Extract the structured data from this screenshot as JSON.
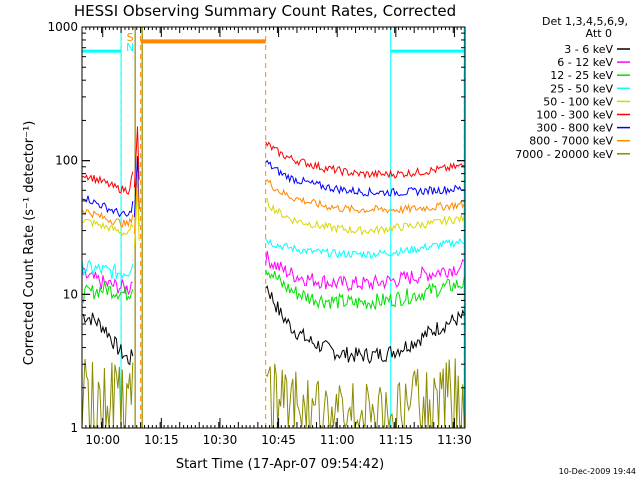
{
  "chart_data": {
    "type": "line",
    "title": "HESSI Observing Summary Count Rates, Corrected",
    "xlabel": "Start Time (17-Apr-07 09:54:42)",
    "ylabel": "Corrected Count Rate (s⁻¹ detector⁻¹)",
    "x_unit": "minutes after 09:54:42",
    "xlim": [
      0,
      98
    ],
    "ylim": [
      1,
      1000
    ],
    "y_scale": "log",
    "x_ticks": [
      {
        "x": 5.3,
        "label": "10:00"
      },
      {
        "x": 20.3,
        "label": "10:15"
      },
      {
        "x": 35.3,
        "label": "10:30"
      },
      {
        "x": 50.3,
        "label": "10:45"
      },
      {
        "x": 65.3,
        "label": "11:00"
      },
      {
        "x": 80.3,
        "label": "11:15"
      },
      {
        "x": 95.3,
        "label": "11:30"
      }
    ],
    "y_ticks": [
      {
        "y": 1,
        "label": "1"
      },
      {
        "y": 10,
        "label": "10"
      },
      {
        "y": 100,
        "label": "100"
      },
      {
        "y": 1000,
        "label": "1000"
      }
    ],
    "legend": {
      "header": [
        "Det 1,3,4,5,6,9,",
        "Att 0"
      ],
      "position": "right"
    },
    "series": [
      {
        "name": "3 - 6 keV",
        "color": "#000000",
        "segments": [
          {
            "x": [
              0,
              3,
              6,
              9,
              12,
              13
            ],
            "y": [
              7,
              6.5,
              5.5,
              4,
              3.2,
              3.5
            ]
          },
          {
            "x": [
              47,
              49,
              51,
              54,
              58,
              62,
              66,
              70,
              74,
              78,
              82,
              86,
              90,
              94,
              97.8
            ],
            "y": [
              12,
              9,
              7,
              5.5,
              4.5,
              4,
              3.6,
              3.5,
              3.5,
              3.6,
              4,
              4.6,
              5.4,
              6.2,
              6.8
            ]
          }
        ]
      },
      {
        "name": "6 - 12 keV",
        "color": "#ff00ff",
        "segments": [
          {
            "x": [
              0,
              3,
              6,
              9,
              12,
              13
            ],
            "y": [
              14,
              13,
              12,
              11.5,
              11,
              13
            ]
          },
          {
            "x": [
              47,
              49,
              51,
              54,
              58,
              62,
              66,
              70,
              74,
              78,
              82,
              86,
              90,
              94,
              97.8
            ],
            "y": [
              19,
              17,
              15.5,
              14,
              13,
              12.5,
              12,
              12,
              12,
              12.5,
              13,
              13.8,
              14.5,
              15.5,
              16
            ]
          }
        ]
      },
      {
        "name": "12 - 25 keV",
        "color": "#00e000",
        "segments": [
          {
            "x": [
              0,
              3,
              6,
              9,
              12,
              13
            ],
            "y": [
              10,
              10.5,
              11,
              10.5,
              10,
              12
            ]
          },
          {
            "x": [
              47,
              49,
              51,
              54,
              58,
              62,
              66,
              70,
              74,
              78,
              82,
              86,
              90,
              94,
              97.8
            ],
            "y": [
              16,
              14,
              12,
              10.5,
              9.5,
              9,
              8.8,
              8.6,
              8.8,
              9,
              9.5,
              10,
              10.8,
              11.5,
              12
            ]
          }
        ]
      },
      {
        "name": "25 - 50 keV",
        "color": "#00ffff",
        "segments": [
          {
            "x": [
              0,
              3,
              6,
              9,
              12,
              13
            ],
            "y": [
              16,
              15.5,
              15,
              14.5,
              15,
              18
            ]
          },
          {
            "x": [
              47,
              49,
              51,
              54,
              58,
              62,
              66,
              70,
              74,
              78,
              82,
              86,
              90,
              94,
              97.8
            ],
            "y": [
              26,
              24,
              23,
              22,
              21,
              20.5,
              20,
              20,
              20,
              20.5,
              21,
              22,
              23,
              24,
              25
            ]
          }
        ]
      },
      {
        "name": "50 - 100 keV",
        "color": "#d8d800",
        "segments": [
          {
            "x": [
              0,
              3,
              6,
              9,
              12,
              13
            ],
            "y": [
              36,
              34,
              32,
              30,
              28,
              34
            ]
          },
          {
            "x": [
              47,
              49,
              51,
              54,
              58,
              62,
              66,
              70,
              74,
              78,
              82,
              86,
              90,
              94,
              97.8
            ],
            "y": [
              50,
              44,
              40,
              36,
              34,
              32,
              31,
              30,
              30,
              31,
              32,
              33,
              34,
              36,
              37
            ]
          }
        ]
      },
      {
        "name": "100 - 300 keV",
        "color": "#ff0000",
        "segments": [
          {
            "x": [
              0,
              3,
              6,
              9,
              12,
              13
            ],
            "y": [
              80,
              74,
              68,
              62,
              60,
              80
            ]
          },
          {
            "x": [
              47,
              49,
              51,
              54,
              58,
              62,
              66,
              70,
              74,
              78,
              82,
              86,
              90,
              94,
              97.8
            ],
            "y": [
              135,
              122,
              112,
              102,
              95,
              88,
              84,
              80,
              79,
              79,
              80,
              82,
              85,
              88,
              92
            ]
          }
        ]
      },
      {
        "name": "300 - 800 keV",
        "color": "#0000ff",
        "segments": [
          {
            "x": [
              0,
              3,
              6,
              9,
              12,
              13
            ],
            "y": [
              55,
              49,
              45,
              41,
              38,
              48
            ]
          },
          {
            "x": [
              47,
              49,
              51,
              54,
              58,
              62,
              66,
              70,
              74,
              78,
              82,
              86,
              90,
              94,
              97.8
            ],
            "y": [
              98,
              88,
              80,
              73,
              68,
              64,
              61,
              59,
              58,
              58,
              58,
              59,
              60,
              61,
              62
            ]
          }
        ]
      },
      {
        "name": "800 - 7000 keV",
        "color": "#ff8800",
        "segments": [
          {
            "x": [
              0,
              3,
              6,
              9,
              12,
              13
            ],
            "y": [
              43,
              40,
              37,
              35,
              33,
              40
            ]
          },
          {
            "x": [
              47,
              49,
              51,
              54,
              58,
              62,
              66,
              70,
              74,
              78,
              82,
              86,
              90,
              94,
              97.8
            ],
            "y": [
              72,
              64,
              58,
              53,
              49,
              46,
              44,
              43,
              43,
              43,
              43,
              44,
              45,
              46,
              47
            ]
          },
          {
            "x": [
              15,
              47
            ],
            "y": [
              780,
              780
            ]
          }
        ]
      },
      {
        "name": "7000 - 20000 keV",
        "color": "#8b8b00",
        "segments": [
          {
            "x": [
              0,
              3,
              6,
              9,
              12,
              13
            ],
            "y": [
              2.5,
              2.4,
              2.2,
              2,
              1.8,
              2.2
            ]
          },
          {
            "x": [
              47,
              51,
              56,
              62,
              68,
              74,
              80,
              86,
              92,
              97.8
            ],
            "y": [
              2.4,
              2.1,
              1.8,
              1.6,
              1.5,
              1.5,
              1.6,
              1.9,
              2.3,
              2.6
            ]
          }
        ]
      }
    ],
    "spike": {
      "x": 14.2,
      "peak_y": 180
    },
    "saa_marker": {
      "x": 12.3,
      "labels": [
        "S",
        "N"
      ]
    },
    "cyan_bars": [
      {
        "x0": 0,
        "x1": 10,
        "y": 660
      },
      {
        "x0": 79,
        "x1": 97.8,
        "y": 660
      }
    ],
    "cyan_lines": [
      {
        "x": 10
      },
      {
        "x": 79
      },
      {
        "x": 97.8
      }
    ],
    "cyan_dashed_lines": [
      {
        "x": 10
      },
      {
        "x": 97.8
      }
    ],
    "orange_dashed_lines": [
      {
        "x": 15
      },
      {
        "x": 47
      }
    ],
    "olive_lines": [
      {
        "x": 13.6
      },
      {
        "x": 15.4
      }
    ],
    "timestamp": "10-Dec-2009 19:44"
  }
}
